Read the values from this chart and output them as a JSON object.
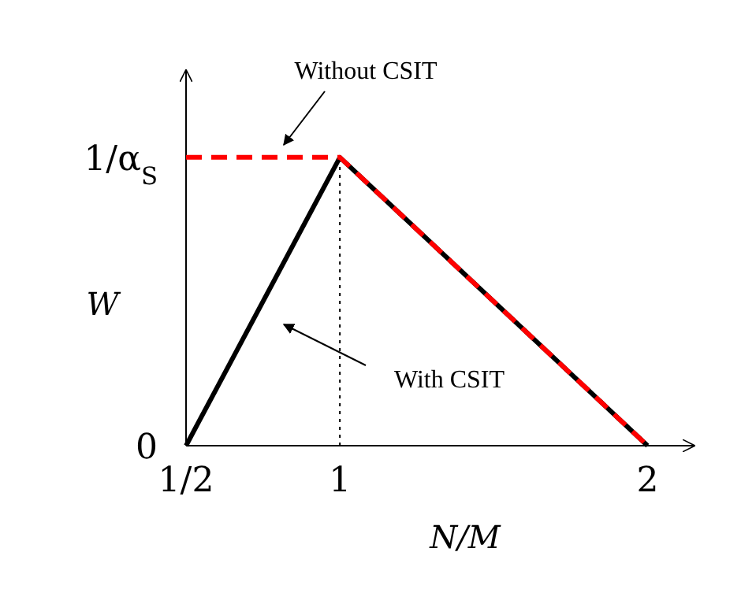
{
  "chart_data": {
    "type": "line",
    "xlabel": "N/M",
    "ylabel": "W",
    "xlim": [
      0.5,
      2.15
    ],
    "xticks": [
      {
        "value": 0.5,
        "label": "1/2"
      },
      1,
      2
    ],
    "ylim": [
      0,
      1.3
    ],
    "yticks": [
      0,
      {
        "value": 1,
        "label": "1/α$_{S}$"
      }
    ],
    "legend": false,
    "ref_lines": [
      {
        "axis": "x",
        "value": 1,
        "line_style": "dotted",
        "color": "#000000"
      }
    ],
    "series": [
      {
        "name": "With CSIT",
        "color": "#000000",
        "line_style": "solid",
        "x": [
          0.5,
          1,
          2
        ],
        "values": [
          0,
          1,
          0
        ]
      },
      {
        "name": "Without CSIT",
        "color": "#ff0000",
        "line_style": "dashed",
        "x": [
          0.5,
          1,
          2
        ],
        "values": [
          1,
          1,
          0
        ]
      }
    ]
  }
}
